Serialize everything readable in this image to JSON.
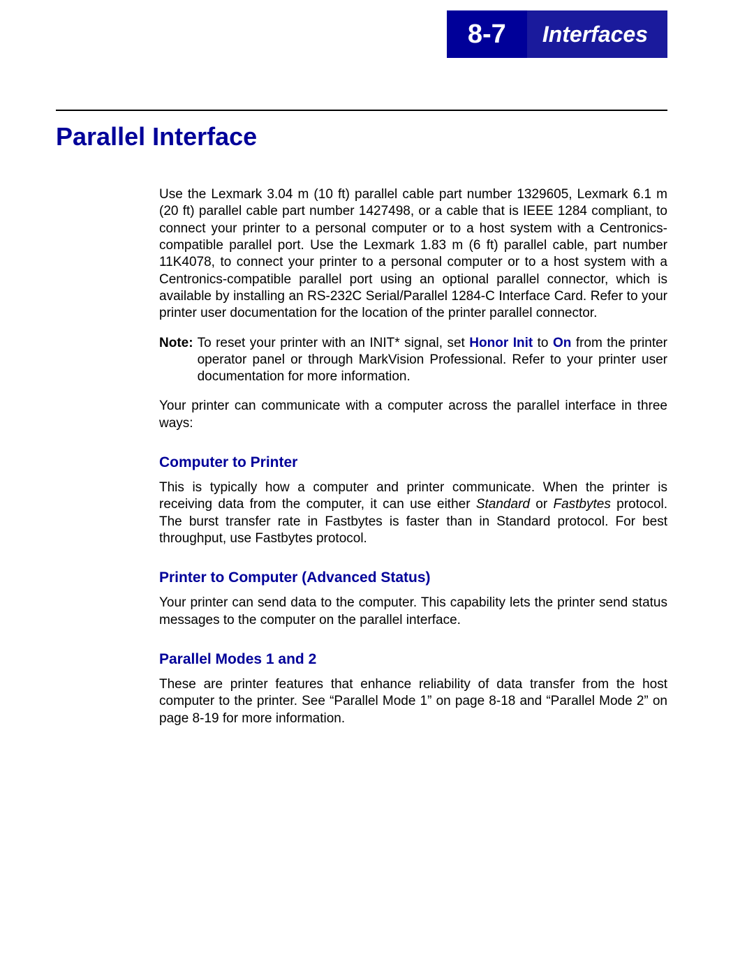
{
  "colors": {
    "brand_blue": "#000099",
    "header_blue": "#1a1a9c",
    "text": "#000000",
    "background": "#ffffff"
  },
  "header": {
    "page_number": "8-7",
    "section": "Interfaces"
  },
  "title": "Parallel Interface",
  "intro_paragraph": "Use the Lexmark 3.04 m (10 ft) parallel cable part number 1329605, Lexmark 6.1 m (20 ft) parallel cable part number 1427498, or a cable that is IEEE 1284 compliant, to connect your printer to a personal computer or to a host system with a Centronics-compatible parallel port. Use the Lexmark 1.83 m (6 ft) parallel cable, part number 11K4078, to connect your printer to a personal computer or to a host system with a Centronics-compatible parallel port using an optional parallel connector, which is available by installing an RS-232C Serial/Parallel 1284-C Interface Card. Refer to your printer user documentation for the location of the printer parallel connector.",
  "note": {
    "label": "Note:",
    "pre": "To reset your printer with an INIT* signal, set ",
    "bold1": "Honor Init",
    "mid": " to ",
    "bold2": "On",
    "post": " from the printer operator panel or through MarkVision Professional. Refer to your printer user documentation for more information."
  },
  "para_ways": "Your printer can communicate with a computer across the parallel interface in three ways:",
  "sections": {
    "s1": {
      "heading": "Computer to Printer",
      "text_pre": "This is typically how a computer and printer communicate. When the printer is receiving data from the computer, it can use either ",
      "italic1": "Standard",
      "text_mid1": " or ",
      "italic2": "Fastbytes",
      "text_post": " protocol. The burst transfer rate in Fastbytes is faster than in Standard protocol. For best throughput, use Fastbytes protocol."
    },
    "s2": {
      "heading": "Printer to Computer (Advanced Status)",
      "text": "Your printer can send data to the computer. This capability lets the printer send status messages to the computer on the parallel interface."
    },
    "s3": {
      "heading": "Parallel Modes 1 and 2",
      "text": "These are printer features that enhance reliability of data transfer from the host computer to the printer. See “Parallel Mode 1” on page 8-18 and “Parallel Mode 2” on page 8-19 for more information."
    }
  }
}
